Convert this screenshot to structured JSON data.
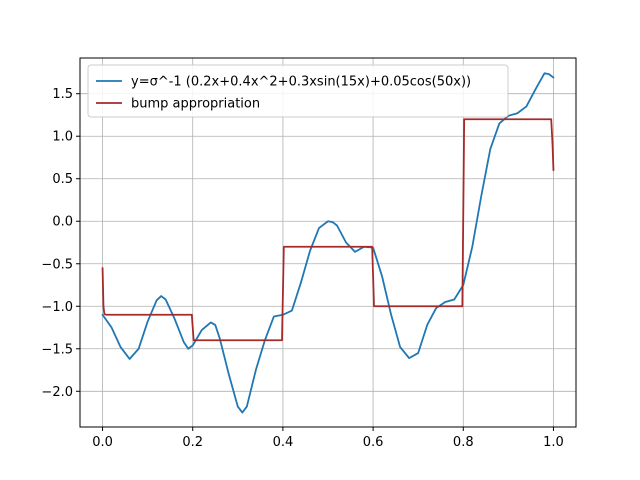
{
  "chart_data": {
    "type": "line",
    "title": "",
    "xlabel": "",
    "ylabel": "",
    "xlim": [
      -0.05,
      1.05
    ],
    "ylim": [
      -2.42,
      1.92
    ],
    "grid": true,
    "legend_position": "top-left",
    "x_ticks": [
      0.0,
      0.2,
      0.4,
      0.6,
      0.8,
      1.0
    ],
    "x_tick_labels": [
      "0.0",
      "0.2",
      "0.4",
      "0.6",
      "0.8",
      "1.0"
    ],
    "y_ticks": [
      -2.0,
      -1.5,
      -1.0,
      -0.5,
      0.0,
      0.5,
      1.0,
      1.5
    ],
    "y_tick_labels": [
      "−2.0",
      "−1.5",
      "−1.0",
      "−0.5",
      "0.0",
      "0.5",
      "1.0",
      "1.5"
    ],
    "series": [
      {
        "name": "y=σ^-1 (0.2x+0.4x^2+0.3xsin(15x)+0.05cos(50x))",
        "color": "#1f77b4",
        "x": [
          0.0,
          0.02,
          0.04,
          0.06,
          0.08,
          0.1,
          0.12,
          0.13,
          0.14,
          0.16,
          0.18,
          0.19,
          0.2,
          0.22,
          0.24,
          0.25,
          0.26,
          0.28,
          0.3,
          0.31,
          0.32,
          0.34,
          0.36,
          0.38,
          0.4,
          0.42,
          0.44,
          0.46,
          0.48,
          0.5,
          0.51,
          0.52,
          0.54,
          0.56,
          0.58,
          0.6,
          0.62,
          0.64,
          0.66,
          0.68,
          0.7,
          0.72,
          0.74,
          0.76,
          0.78,
          0.8,
          0.82,
          0.84,
          0.86,
          0.88,
          0.9,
          0.92,
          0.94,
          0.96,
          0.98,
          0.99,
          1.0
        ],
        "y": [
          -1.1,
          -1.25,
          -1.48,
          -1.62,
          -1.5,
          -1.18,
          -0.93,
          -0.88,
          -0.92,
          -1.15,
          -1.42,
          -1.5,
          -1.46,
          -1.28,
          -1.19,
          -1.22,
          -1.38,
          -1.8,
          -2.18,
          -2.25,
          -2.18,
          -1.75,
          -1.4,
          -1.12,
          -1.1,
          -1.05,
          -0.72,
          -0.35,
          -0.08,
          0.0,
          -0.01,
          -0.05,
          -0.25,
          -0.36,
          -0.3,
          -0.31,
          -0.65,
          -1.1,
          -1.48,
          -1.61,
          -1.55,
          -1.22,
          -1.02,
          -0.95,
          -0.92,
          -0.75,
          -0.3,
          0.3,
          0.85,
          1.15,
          1.24,
          1.27,
          1.35,
          1.55,
          1.74,
          1.73,
          1.69
        ]
      },
      {
        "name": "bump appropriation",
        "color": "#a52a2a",
        "x": [
          0.0,
          0.002,
          0.004,
          0.008,
          0.15,
          0.198,
          0.202,
          0.3,
          0.398,
          0.402,
          0.5,
          0.598,
          0.602,
          0.7,
          0.798,
          0.802,
          0.9,
          0.995,
          0.998,
          1.0
        ],
        "y": [
          -0.55,
          -1.0,
          -1.09,
          -1.1,
          -1.1,
          -1.1,
          -1.4,
          -1.4,
          -1.4,
          -0.3,
          -0.3,
          -0.3,
          -1.0,
          -1.0,
          -1.0,
          1.2,
          1.2,
          1.2,
          0.9,
          0.6
        ]
      }
    ]
  }
}
